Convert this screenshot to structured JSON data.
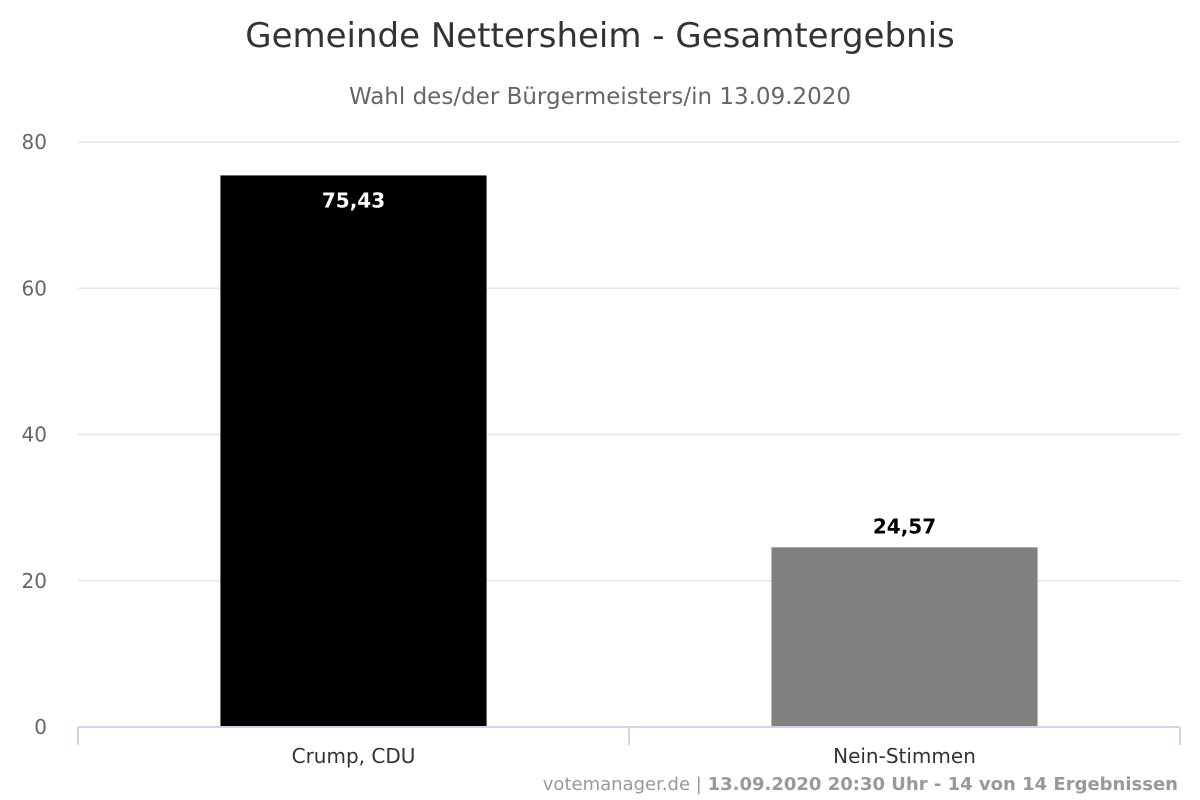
{
  "chart_data": {
    "type": "bar",
    "title": "Gemeinde Nettersheim - Gesamtergebnis",
    "subtitle": "Wahl des/der Bürgermeisters/in 13.09.2020",
    "categories": [
      "Crump, CDU",
      "Nein-Stimmen"
    ],
    "values": [
      75.43,
      24.57
    ],
    "data_labels": [
      "75,43",
      "24,57"
    ],
    "colors": [
      "#000000",
      "#808080"
    ],
    "label_colors": [
      "#ffffff",
      "#000000"
    ],
    "ylim": [
      0,
      80
    ],
    "yticks": [
      0,
      20,
      40,
      60,
      80
    ],
    "grid": true,
    "legend": "none"
  },
  "credits": {
    "site": "votemanager.de",
    "separator": " | ",
    "status": "13.09.2020 20:30 Uhr - 14 von 14 Ergebnissen"
  },
  "colors": {
    "grid": "#e6e6e6",
    "axis": "#ccd6eb"
  }
}
